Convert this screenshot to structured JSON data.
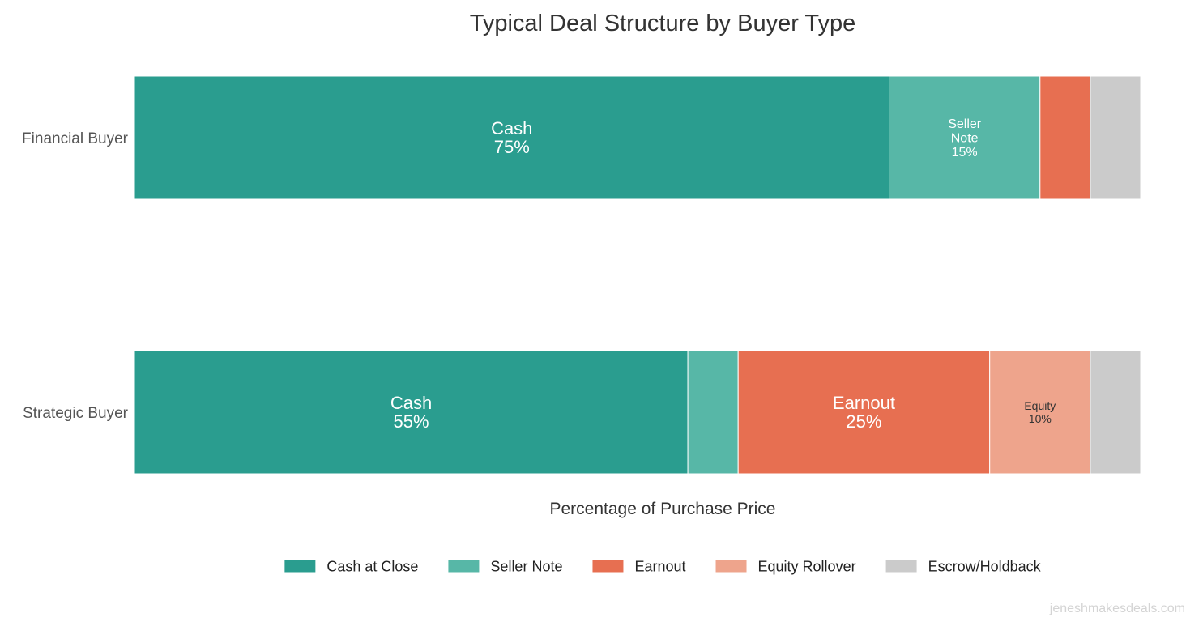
{
  "chart_data": {
    "type": "bar",
    "orientation": "horizontal",
    "stacked": true,
    "title": "Typical Deal Structure by Buyer Type",
    "xlabel": "Percentage of Purchase Price",
    "ylabel": "",
    "xlim": [
      0,
      100
    ],
    "grid": false,
    "legend_position": "bottom",
    "categories": [
      "Financial Buyer",
      "Strategic Buyer"
    ],
    "series": [
      {
        "name": "Cash at Close",
        "color": "#2a9d8f",
        "values": [
          75,
          55
        ],
        "labels": [
          [
            "Cash",
            "75%"
          ],
          [
            "Cash",
            "55%"
          ]
        ]
      },
      {
        "name": "Seller Note",
        "color": "#57b7a7",
        "values": [
          15,
          5
        ],
        "labels": [
          [
            "Seller",
            "Note",
            "15%"
          ],
          []
        ]
      },
      {
        "name": "Earnout",
        "color": "#e76f51",
        "values": [
          5,
          25
        ],
        "labels": [
          [],
          [
            "Earnout",
            "25%"
          ]
        ]
      },
      {
        "name": "Equity Rollover",
        "color": "#eea48c",
        "values": [
          0,
          10
        ],
        "labels": [
          [],
          [
            "Equity",
            "10%"
          ]
        ]
      },
      {
        "name": "Escrow/Holdback",
        "color": "#cbcbcb",
        "values": [
          5,
          5
        ],
        "labels": [
          [],
          []
        ]
      }
    ]
  },
  "watermark": "jeneshmakesdeals.com"
}
